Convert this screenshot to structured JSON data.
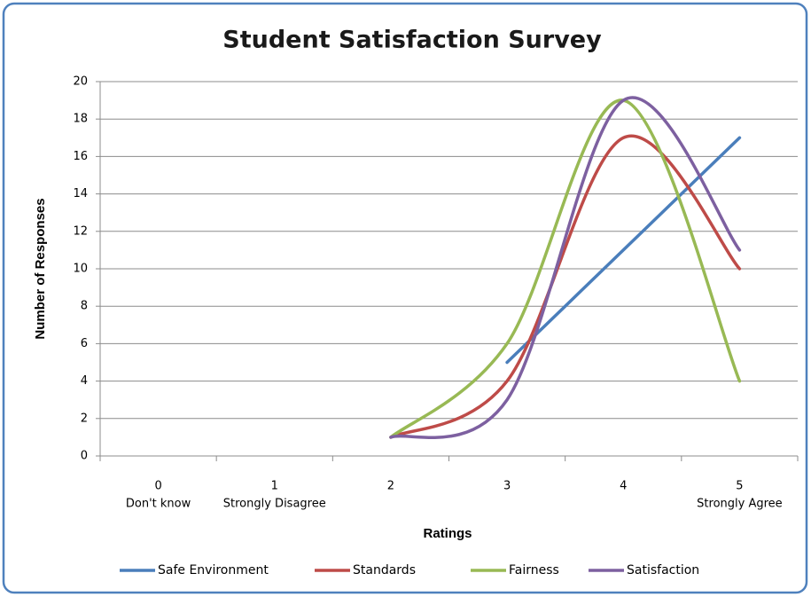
{
  "chart_data": {
    "type": "line",
    "title": "Student Satisfaction Survey",
    "x_label": "Ratings",
    "y_label": "Number of Responses",
    "categories": [
      "0",
      "1",
      "2",
      "3",
      "4",
      "5"
    ],
    "category_sublabels": [
      "Don't know",
      "Strongly Disagree",
      null,
      null,
      null,
      "Strongly Agree"
    ],
    "series": [
      {
        "name": "Safe Environment",
        "color": "#4a7ebb",
        "values": [
          null,
          null,
          null,
          5,
          11,
          17
        ]
      },
      {
        "name": "Standards",
        "color": "#be4b48",
        "values": [
          null,
          null,
          1,
          4,
          17,
          10
        ]
      },
      {
        "name": "Fairness",
        "color": "#98b954",
        "values": [
          null,
          null,
          1,
          6,
          19,
          4
        ]
      },
      {
        "name": "Satisfaction",
        "color": "#7d60a0",
        "values": [
          null,
          null,
          1,
          3,
          19,
          11
        ]
      }
    ],
    "smooth": true,
    "ylim": [
      0,
      20
    ],
    "yticks": [
      0,
      2,
      4,
      6,
      8,
      10,
      12,
      14,
      16,
      18,
      20
    ],
    "grid": true,
    "legend": "bottom"
  }
}
